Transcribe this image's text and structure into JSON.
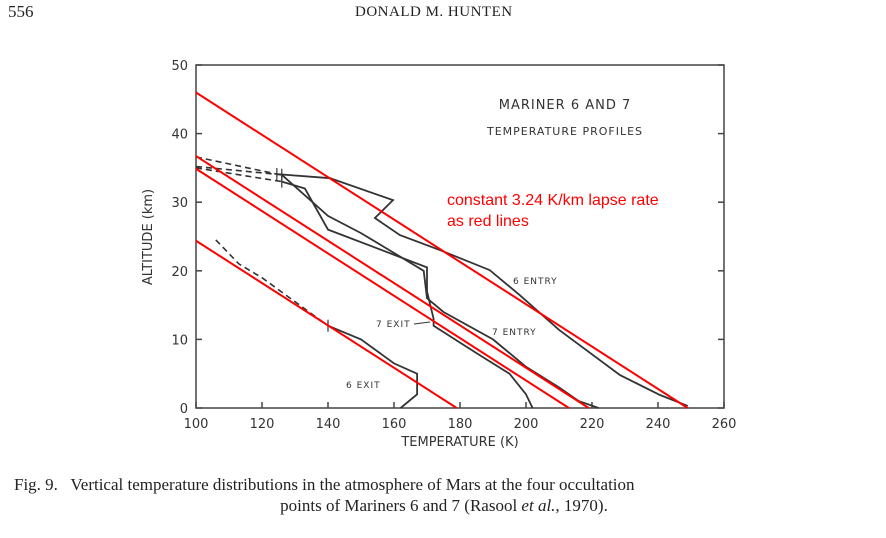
{
  "header": {
    "page_number": "556",
    "author": "DONALD M. HUNTEN"
  },
  "caption": {
    "label": "Fig. 9.",
    "text_line1": "Vertical temperature distributions in the atmosphere of Mars at the four occultation",
    "text_line2_pre": "points of Mariners 6 and 7 (Rasool ",
    "text_line2_italic": "et al.",
    "text_line2_post": ", 1970)."
  },
  "chart_data": {
    "type": "line",
    "title_line1": "MARINER 6 AND 7",
    "title_line2": "TEMPERATURE PROFILES",
    "xlabel": "TEMPERATURE (K)",
    "ylabel": "ALTITUDE (km)",
    "xlim": [
      100,
      260
    ],
    "ylim": [
      0,
      50
    ],
    "xticks": [
      100,
      120,
      140,
      160,
      180,
      200,
      220,
      240,
      260
    ],
    "yticks": [
      0,
      10,
      20,
      30,
      40,
      50
    ],
    "grid": false,
    "series": [
      {
        "name": "6 ENTRY",
        "style": "solid",
        "dashed_part": [
          [
            100,
            36.6
          ],
          [
            124.5,
            34.1
          ]
        ],
        "points": [
          [
            124.5,
            34.1
          ],
          [
            140.6,
            33.5
          ],
          [
            159.7,
            30.3
          ],
          [
            154.2,
            27.7
          ],
          [
            161.8,
            25.2
          ],
          [
            174,
            23
          ],
          [
            189,
            20.1
          ],
          [
            198,
            16.5
          ],
          [
            210,
            11.4
          ],
          [
            228.5,
            4.8
          ],
          [
            240.6,
            1.9
          ],
          [
            249,
            0.3
          ]
        ]
      },
      {
        "name": "7 ENTRY",
        "style": "solid",
        "dashed_part": [
          [
            100,
            35.2
          ],
          [
            126,
            34
          ]
        ],
        "points": [
          [
            126,
            34
          ],
          [
            140,
            28
          ],
          [
            150,
            25.5
          ],
          [
            169,
            20
          ],
          [
            170,
            16
          ],
          [
            175,
            14
          ],
          [
            190,
            10
          ],
          [
            200,
            6
          ],
          [
            210,
            3
          ],
          [
            216,
            1
          ],
          [
            222,
            0
          ]
        ]
      },
      {
        "name": "7 EXIT",
        "style": "solid",
        "dashed_part": [
          [
            100,
            35
          ],
          [
            126,
            33
          ]
        ],
        "points": [
          [
            126,
            33
          ],
          [
            133,
            32
          ],
          [
            140,
            26
          ],
          [
            170,
            20.5
          ],
          [
            170,
            17
          ],
          [
            172,
            13
          ],
          [
            172,
            12
          ],
          [
            185,
            8
          ],
          [
            195,
            5
          ],
          [
            200,
            2
          ],
          [
            202,
            0
          ]
        ]
      },
      {
        "name": "6 EXIT",
        "style": "solid",
        "dashed_part": [
          [
            106,
            24.5
          ],
          [
            113,
            21
          ],
          [
            120,
            19
          ],
          [
            130,
            15.5
          ],
          [
            140,
            12
          ]
        ],
        "points": [
          [
            140,
            12
          ],
          [
            150,
            10
          ],
          [
            160,
            6.5
          ],
          [
            167,
            5
          ],
          [
            167,
            2
          ],
          [
            162,
            0
          ]
        ]
      }
    ],
    "overlay": {
      "annotation_line1": "constant 3.24 K/km lapse rate",
      "annotation_line2": "as red lines",
      "color": "#ff0000",
      "lapse_rate_k_per_km": 3.24,
      "surface_temperatures": [
        249,
        219,
        213,
        179
      ]
    }
  }
}
